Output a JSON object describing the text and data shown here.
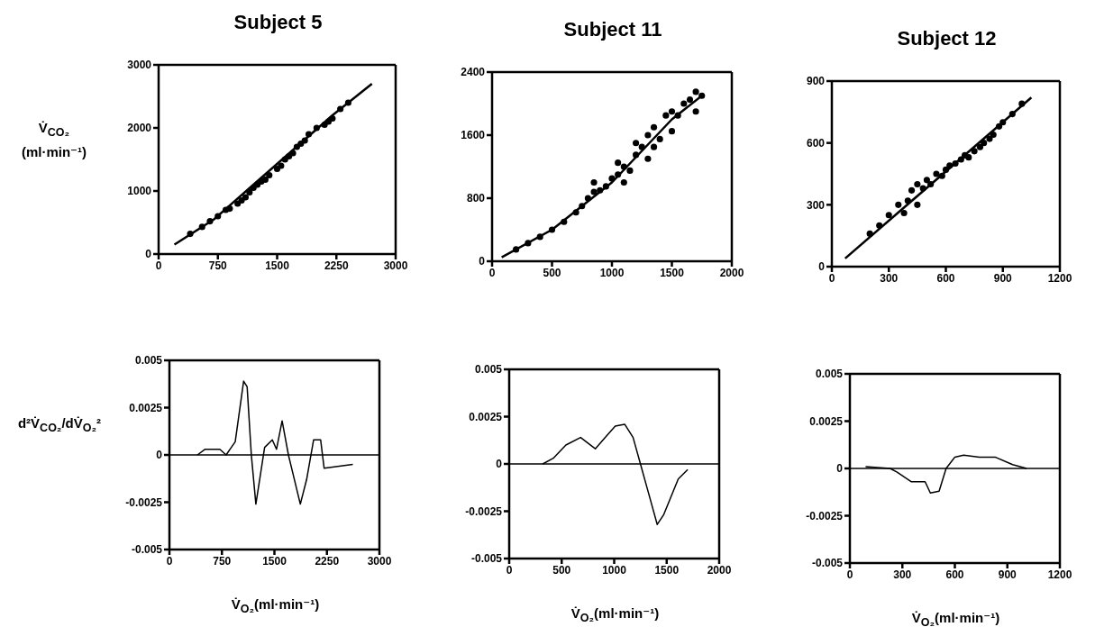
{
  "chart_data": [
    {
      "type": "scatter",
      "title": "Subject 5",
      "ylabel": "V̇$_{CO₂}$ (ml·min⁻¹)",
      "xlim": [
        0,
        3000
      ],
      "xticks": [
        0,
        750,
        1500,
        2250,
        3000
      ],
      "ylim": [
        0,
        3000
      ],
      "yticks": [
        0,
        1000,
        2000,
        3000
      ],
      "series": [
        {
          "marker": "circle",
          "color": "#000000",
          "x": [
            400,
            550,
            650,
            750,
            850,
            900,
            1000,
            1050,
            1100,
            1150,
            1200,
            1250,
            1300,
            1350,
            1400,
            1500,
            1550,
            1600,
            1650,
            1700,
            1750,
            1800,
            1850,
            1900,
            2000,
            2100,
            2150,
            2200,
            2300,
            2400
          ],
          "values": [
            320,
            430,
            520,
            600,
            700,
            720,
            800,
            850,
            900,
            980,
            1050,
            1100,
            1150,
            1180,
            1250,
            1350,
            1400,
            1500,
            1550,
            1600,
            1700,
            1750,
            1800,
            1900,
            2000,
            2050,
            2100,
            2150,
            2300,
            2400
          ]
        },
        {
          "type": "line",
          "color": "#000000",
          "x": [
            200,
            700,
            1200,
            1700,
            2200,
            2700
          ],
          "values": [
            150,
            550,
            1100,
            1650,
            2200,
            2700
          ]
        }
      ]
    },
    {
      "type": "scatter",
      "title": "Subject 11",
      "xlim": [
        0,
        2000
      ],
      "xticks": [
        0,
        500,
        1000,
        1500,
        2000
      ],
      "ylim": [
        0,
        2400
      ],
      "yticks": [
        0,
        800,
        1600,
        2400
      ],
      "series": [
        {
          "marker": "circle",
          "color": "#000000",
          "x": [
            200,
            300,
            400,
            500,
            600,
            700,
            750,
            800,
            850,
            850,
            900,
            950,
            1000,
            1050,
            1050,
            1100,
            1100,
            1150,
            1200,
            1200,
            1250,
            1300,
            1300,
            1350,
            1350,
            1400,
            1450,
            1500,
            1500,
            1550,
            1600,
            1650,
            1700,
            1700,
            1750
          ],
          "values": [
            150,
            230,
            310,
            400,
            500,
            620,
            700,
            800,
            880,
            1000,
            900,
            950,
            1050,
            1100,
            1250,
            1200,
            1000,
            1150,
            1350,
            1500,
            1450,
            1600,
            1300,
            1700,
            1450,
            1550,
            1850,
            1900,
            1650,
            1850,
            2000,
            2050,
            2150,
            1900,
            2100
          ]
        },
        {
          "type": "line",
          "color": "#000000",
          "x": [
            80,
            500,
            1000,
            1250,
            1500,
            1750
          ],
          "values": [
            50,
            400,
            1000,
            1400,
            1800,
            2100
          ]
        }
      ]
    },
    {
      "type": "scatter",
      "title": "Subject 12",
      "xlim": [
        0,
        1200
      ],
      "xticks": [
        0,
        300,
        600,
        900,
        1200
      ],
      "ylim": [
        0,
        900
      ],
      "yticks": [
        0,
        300,
        600,
        900
      ],
      "series": [
        {
          "marker": "circle",
          "color": "#000000",
          "x": [
            200,
            250,
            300,
            350,
            380,
            400,
            420,
            450,
            450,
            480,
            500,
            520,
            550,
            580,
            600,
            620,
            650,
            680,
            700,
            720,
            750,
            780,
            800,
            830,
            850,
            880,
            900,
            950,
            1000
          ],
          "values": [
            160,
            200,
            250,
            300,
            260,
            320,
            370,
            300,
            400,
            380,
            420,
            400,
            450,
            440,
            470,
            490,
            500,
            520,
            540,
            530,
            560,
            580,
            600,
            620,
            640,
            680,
            700,
            740,
            790
          ]
        },
        {
          "type": "line",
          "color": "#000000",
          "x": [
            70,
            1050
          ],
          "values": [
            40,
            820
          ]
        }
      ]
    },
    {
      "type": "line",
      "ylabel": "d²V̇$_{CO₂}$/dV̇$_{O₂}$²",
      "xlabel": "V̇$_{O₂}$(ml·min⁻¹)",
      "xlim": [
        0,
        3000
      ],
      "xticks": [
        0,
        750,
        1500,
        2250,
        3000
      ],
      "ylim": [
        -0.005,
        0.005
      ],
      "yticks": [
        -0.005,
        -0.0025,
        0,
        0.0025,
        0.005
      ],
      "ref_lines": [
        {
          "axis": "y",
          "value": 0
        }
      ],
      "series": [
        {
          "color": "#000000",
          "x": [
            400,
            510,
            720,
            810,
            940,
            1060,
            1110,
            1170,
            1235,
            1360,
            1470,
            1530,
            1610,
            1700,
            1870,
            1960,
            2060,
            2160,
            2210,
            2620
          ],
          "values": [
            0,
            0.0003,
            0.0003,
            0,
            0.0007,
            0.0039,
            0.0036,
            0,
            -0.0026,
            0.0004,
            0.0008,
            0.0003,
            0.0018,
            0,
            -0.0026,
            -0.0013,
            0.0008,
            0.0008,
            -0.0007,
            -0.0005
          ]
        }
      ]
    },
    {
      "type": "line",
      "xlabel": "V̇$_{O₂}$(ml·min⁻¹)",
      "xlim": [
        0,
        2000
      ],
      "xticks": [
        0,
        500,
        1000,
        1500,
        2000
      ],
      "ylim": [
        -0.005,
        0.005
      ],
      "yticks": [
        -0.005,
        -0.0025,
        0,
        0.0025,
        0.005
      ],
      "ref_lines": [
        {
          "axis": "y",
          "value": 0
        }
      ],
      "series": [
        {
          "color": "#000000",
          "x": [
            320,
            420,
            540,
            680,
            820,
            930,
            1010,
            1100,
            1180,
            1250,
            1320,
            1410,
            1470,
            1610,
            1700
          ],
          "values": [
            0,
            0.0003,
            0.001,
            0.0014,
            0.0008,
            0.0015,
            0.002,
            0.0021,
            0.0014,
            0,
            -0.0014,
            -0.0032,
            -0.0027,
            -0.0008,
            -0.0003
          ]
        }
      ]
    },
    {
      "type": "line",
      "xlabel": "V̇$_{O₂}$(ml·min⁻¹)",
      "xlim": [
        0,
        1200
      ],
      "xticks": [
        0,
        300,
        600,
        900,
        1200
      ],
      "ylim": [
        -0.005,
        0.005
      ],
      "yticks": [
        -0.005,
        -0.0025,
        0,
        0.0025,
        0.005
      ],
      "ref_lines": [
        {
          "axis": "y",
          "value": 0
        }
      ],
      "series": [
        {
          "color": "#000000",
          "x": [
            90,
            230,
            270,
            350,
            430,
            460,
            510,
            550,
            600,
            650,
            740,
            830,
            930,
            1010
          ],
          "values": [
            0.0001,
            0,
            -0.0002,
            -0.0007,
            -0.0007,
            -0.0013,
            -0.0012,
            0,
            0.0006,
            0.0007,
            0.0006,
            0.0006,
            0.0002,
            0
          ]
        }
      ]
    }
  ]
}
